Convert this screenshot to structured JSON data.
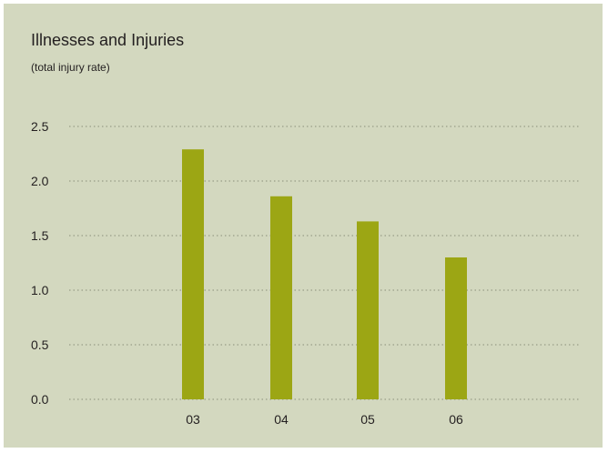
{
  "chart_data": {
    "type": "bar",
    "title": "Illnesses and Injuries",
    "subtitle": "(total injury rate)",
    "categories": [
      "03",
      "04",
      "05",
      "06"
    ],
    "values": [
      2.29,
      1.86,
      1.63,
      1.3
    ],
    "ylim": [
      0,
      2.5
    ],
    "yticks": [
      "0.0",
      "0.5",
      "1.0",
      "1.5",
      "2.0",
      "2.5"
    ],
    "grid": true,
    "grid_style": "dotted",
    "legend": "none",
    "colors": {
      "bar": "#9ca614",
      "background": "#d3d8bf",
      "grid": "#8a8e7a",
      "text": "#231f20"
    }
  }
}
